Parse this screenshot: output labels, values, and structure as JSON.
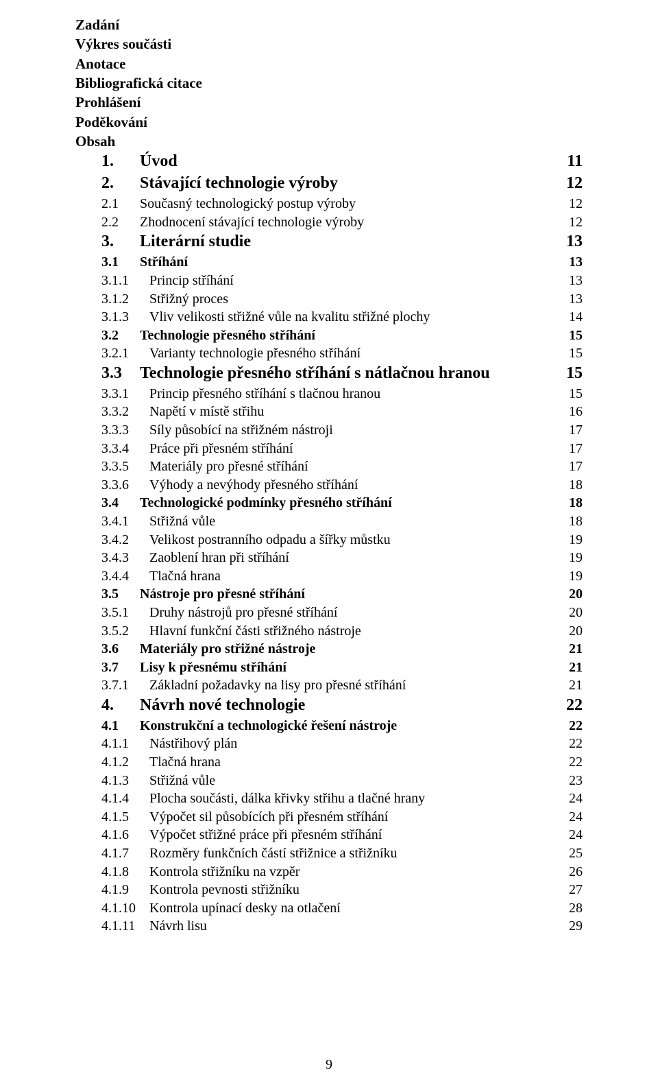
{
  "header_lines": [
    "Zadání",
    "Výkres součásti",
    "Anotace",
    "Bibliografická citace",
    "Prohlášení",
    "Poděkování",
    "Obsah"
  ],
  "toc": [
    {
      "level": 1,
      "num": "1.",
      "title": "Úvod",
      "page": "11",
      "bold": true,
      "large": true
    },
    {
      "level": 1,
      "num": "2.",
      "title": "Stávající technologie výroby",
      "page": "12",
      "bold": true,
      "large": true
    },
    {
      "level": 2,
      "num": "2.1",
      "title": "Současný technologický postup výroby",
      "page": "12"
    },
    {
      "level": 2,
      "num": "2.2",
      "title": "Zhodnocení stávající technologie výroby",
      "page": "12"
    },
    {
      "level": 1,
      "num": "3.",
      "title": "Literární studie",
      "page": "13",
      "bold": true,
      "large": true
    },
    {
      "level": 2,
      "num": "3.1",
      "title": "Stříhání",
      "page": "13",
      "bold": true
    },
    {
      "level": 3,
      "num": "3.1.1",
      "title": "Princip stříhání",
      "page": "13"
    },
    {
      "level": 3,
      "num": "3.1.2",
      "title": "Střižný proces",
      "page": "13"
    },
    {
      "level": 3,
      "num": "3.1.3",
      "title": "Vliv velikosti střižné vůle na kvalitu střižné plochy",
      "page": "14"
    },
    {
      "level": 2,
      "num": "3.2",
      "title": "Technologie přesného stříhání",
      "page": "15",
      "bold": true
    },
    {
      "level": 3,
      "num": "3.2.1",
      "title": "Varianty technologie přesného stříhání",
      "page": "15"
    },
    {
      "level": 2,
      "num": "3.3",
      "title": "Technologie přesného stříhání s nátlačnou hranou",
      "page": "15",
      "bold": true,
      "large": true
    },
    {
      "level": 3,
      "num": "3.3.1",
      "title": "Princip přesného stříhání s tlačnou hranou",
      "page": "15"
    },
    {
      "level": 3,
      "num": "3.3.2",
      "title": "Napětí v místě střihu",
      "page": "16"
    },
    {
      "level": 3,
      "num": "3.3.3",
      "title": "Síly působící na střižném nástroji",
      "page": "17"
    },
    {
      "level": 3,
      "num": "3.3.4",
      "title": "Práce při přesném stříhání",
      "page": "17"
    },
    {
      "level": 3,
      "num": "3.3.5",
      "title": "Materiály pro přesné stříhání",
      "page": "17"
    },
    {
      "level": 3,
      "num": "3.3.6",
      "title": "Výhody a nevýhody přesného stříhání",
      "page": "18"
    },
    {
      "level": 2,
      "num": "3.4",
      "title": "Technologické podmínky přesného stříhání",
      "page": "18",
      "bold": true
    },
    {
      "level": 3,
      "num": "3.4.1",
      "title": "Střižná vůle",
      "page": "18"
    },
    {
      "level": 3,
      "num": "3.4.2",
      "title": "Velikost postranního odpadu a šířky můstku",
      "page": "19"
    },
    {
      "level": 3,
      "num": "3.4.3",
      "title": "Zaoblení hran při stříhání",
      "page": "19"
    },
    {
      "level": 3,
      "num": "3.4.4",
      "title": "Tlačná hrana",
      "page": "19"
    },
    {
      "level": 2,
      "num": "3.5",
      "title": "Nástroje pro přesné stříhání",
      "page": "20",
      "bold": true
    },
    {
      "level": 3,
      "num": "3.5.1",
      "title": "Druhy nástrojů pro přesné stříhání",
      "page": "20"
    },
    {
      "level": 3,
      "num": "3.5.2",
      "title": "Hlavní funkční části střižného nástroje",
      "page": "20"
    },
    {
      "level": 2,
      "num": "3.6",
      "title": "Materiály pro střižné nástroje",
      "page": "21",
      "bold": true
    },
    {
      "level": 2,
      "num": "3.7",
      "title": "Lisy k přesnému stříhání",
      "page": "21",
      "bold": true
    },
    {
      "level": 3,
      "num": "3.7.1",
      "title": "Základní požadavky na lisy pro přesné stříhání",
      "page": "21"
    },
    {
      "level": 1,
      "num": "4.",
      "title": "Návrh nové technologie",
      "page": "22",
      "bold": true,
      "large": true
    },
    {
      "level": 2,
      "num": "4.1",
      "title": "Konstrukční a technologické řešení nástroje",
      "page": "22",
      "bold": true
    },
    {
      "level": 3,
      "num": "4.1.1",
      "title": "Nástřihový plán",
      "page": "22"
    },
    {
      "level": 3,
      "num": "4.1.2",
      "title": "Tlačná hrana",
      "page": "22"
    },
    {
      "level": 3,
      "num": "4.1.3",
      "title": "Střižná vůle",
      "page": "23"
    },
    {
      "level": 3,
      "num": "4.1.4",
      "title": "Plocha součásti, dálka křivky střihu a tlačné hrany",
      "page": "24"
    },
    {
      "level": 3,
      "num": "4.1.5",
      "title": "Výpočet sil působících při přesném stříhání",
      "page": "24"
    },
    {
      "level": 3,
      "num": "4.1.6",
      "title": "Výpočet střižné práce při přesném stříhání",
      "page": "24"
    },
    {
      "level": 3,
      "num": "4.1.7",
      "title": "Rozměry funkčních částí střižnice a střižníku",
      "page": "25"
    },
    {
      "level": 3,
      "num": "4.1.8",
      "title": "Kontrola střižníku na vzpěr",
      "page": "26"
    },
    {
      "level": 3,
      "num": "4.1.9",
      "title": "Kontrola pevnosti střižníku",
      "page": "27"
    },
    {
      "level": 3,
      "num": "4.1.10",
      "title": "Kontrola upínací desky na otlačení",
      "page": "28"
    },
    {
      "level": 3,
      "num": "4.1.11",
      "title": "Návrh lisu",
      "page": "29"
    }
  ],
  "page_number": "9"
}
